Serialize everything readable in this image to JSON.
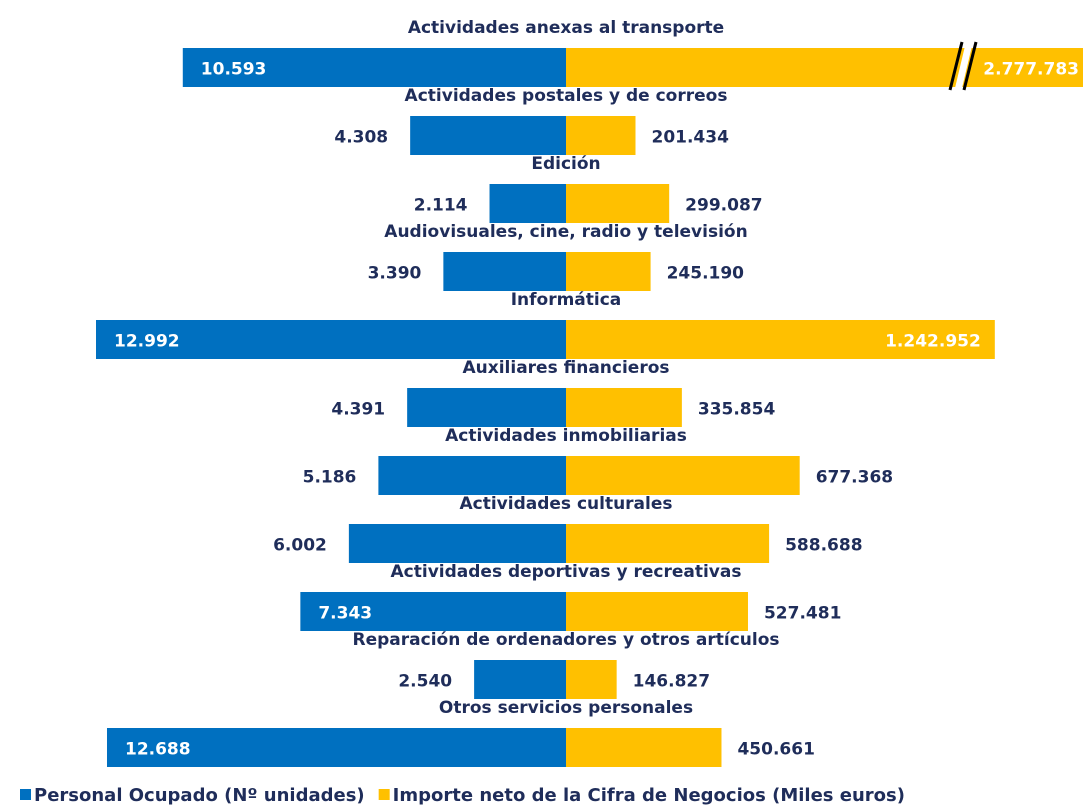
{
  "chart_data": {
    "type": "butterfly",
    "categories": [
      "Actividades anexas al transporte",
      "Actividades postales y de correos",
      "Edición",
      "Audiovisuales, cine, radio y televisión",
      "Informática",
      "Auxiliares financieros",
      "Actividades inmobiliarias",
      "Actividades culturales",
      "Actividades deportivas y recreativas",
      "Reparación de ordenadores y otros artículos",
      "Otros servicios personales"
    ],
    "series": [
      {
        "name": "Personal Ocupado (Nº unidades)",
        "color": "#0070c0",
        "values": [
          10593,
          4308,
          2114,
          3390,
          12992,
          4391,
          5186,
          6002,
          7343,
          2540,
          12688
        ],
        "value_labels": [
          "10.593",
          "4.308",
          "2.114",
          "3.390",
          "12.992",
          "4.391",
          "5.186",
          "6.002",
          "7.343",
          "2.540",
          "12.688"
        ]
      },
      {
        "name": "Importe neto de la Cifra de Negocios (Miles euros)",
        "color": "#ffc000",
        "values": [
          2777783,
          201434,
          299087,
          245190,
          1242952,
          335854,
          677368,
          588688,
          527481,
          146827,
          450661
        ],
        "value_labels": [
          "2.777.783",
          "201.434",
          "299.087",
          "245.190",
          "1.242.952",
          "335.854",
          "677.368",
          "588.688",
          "527.481",
          "146.827",
          "450.661"
        ]
      }
    ],
    "legend": "bottom"
  }
}
